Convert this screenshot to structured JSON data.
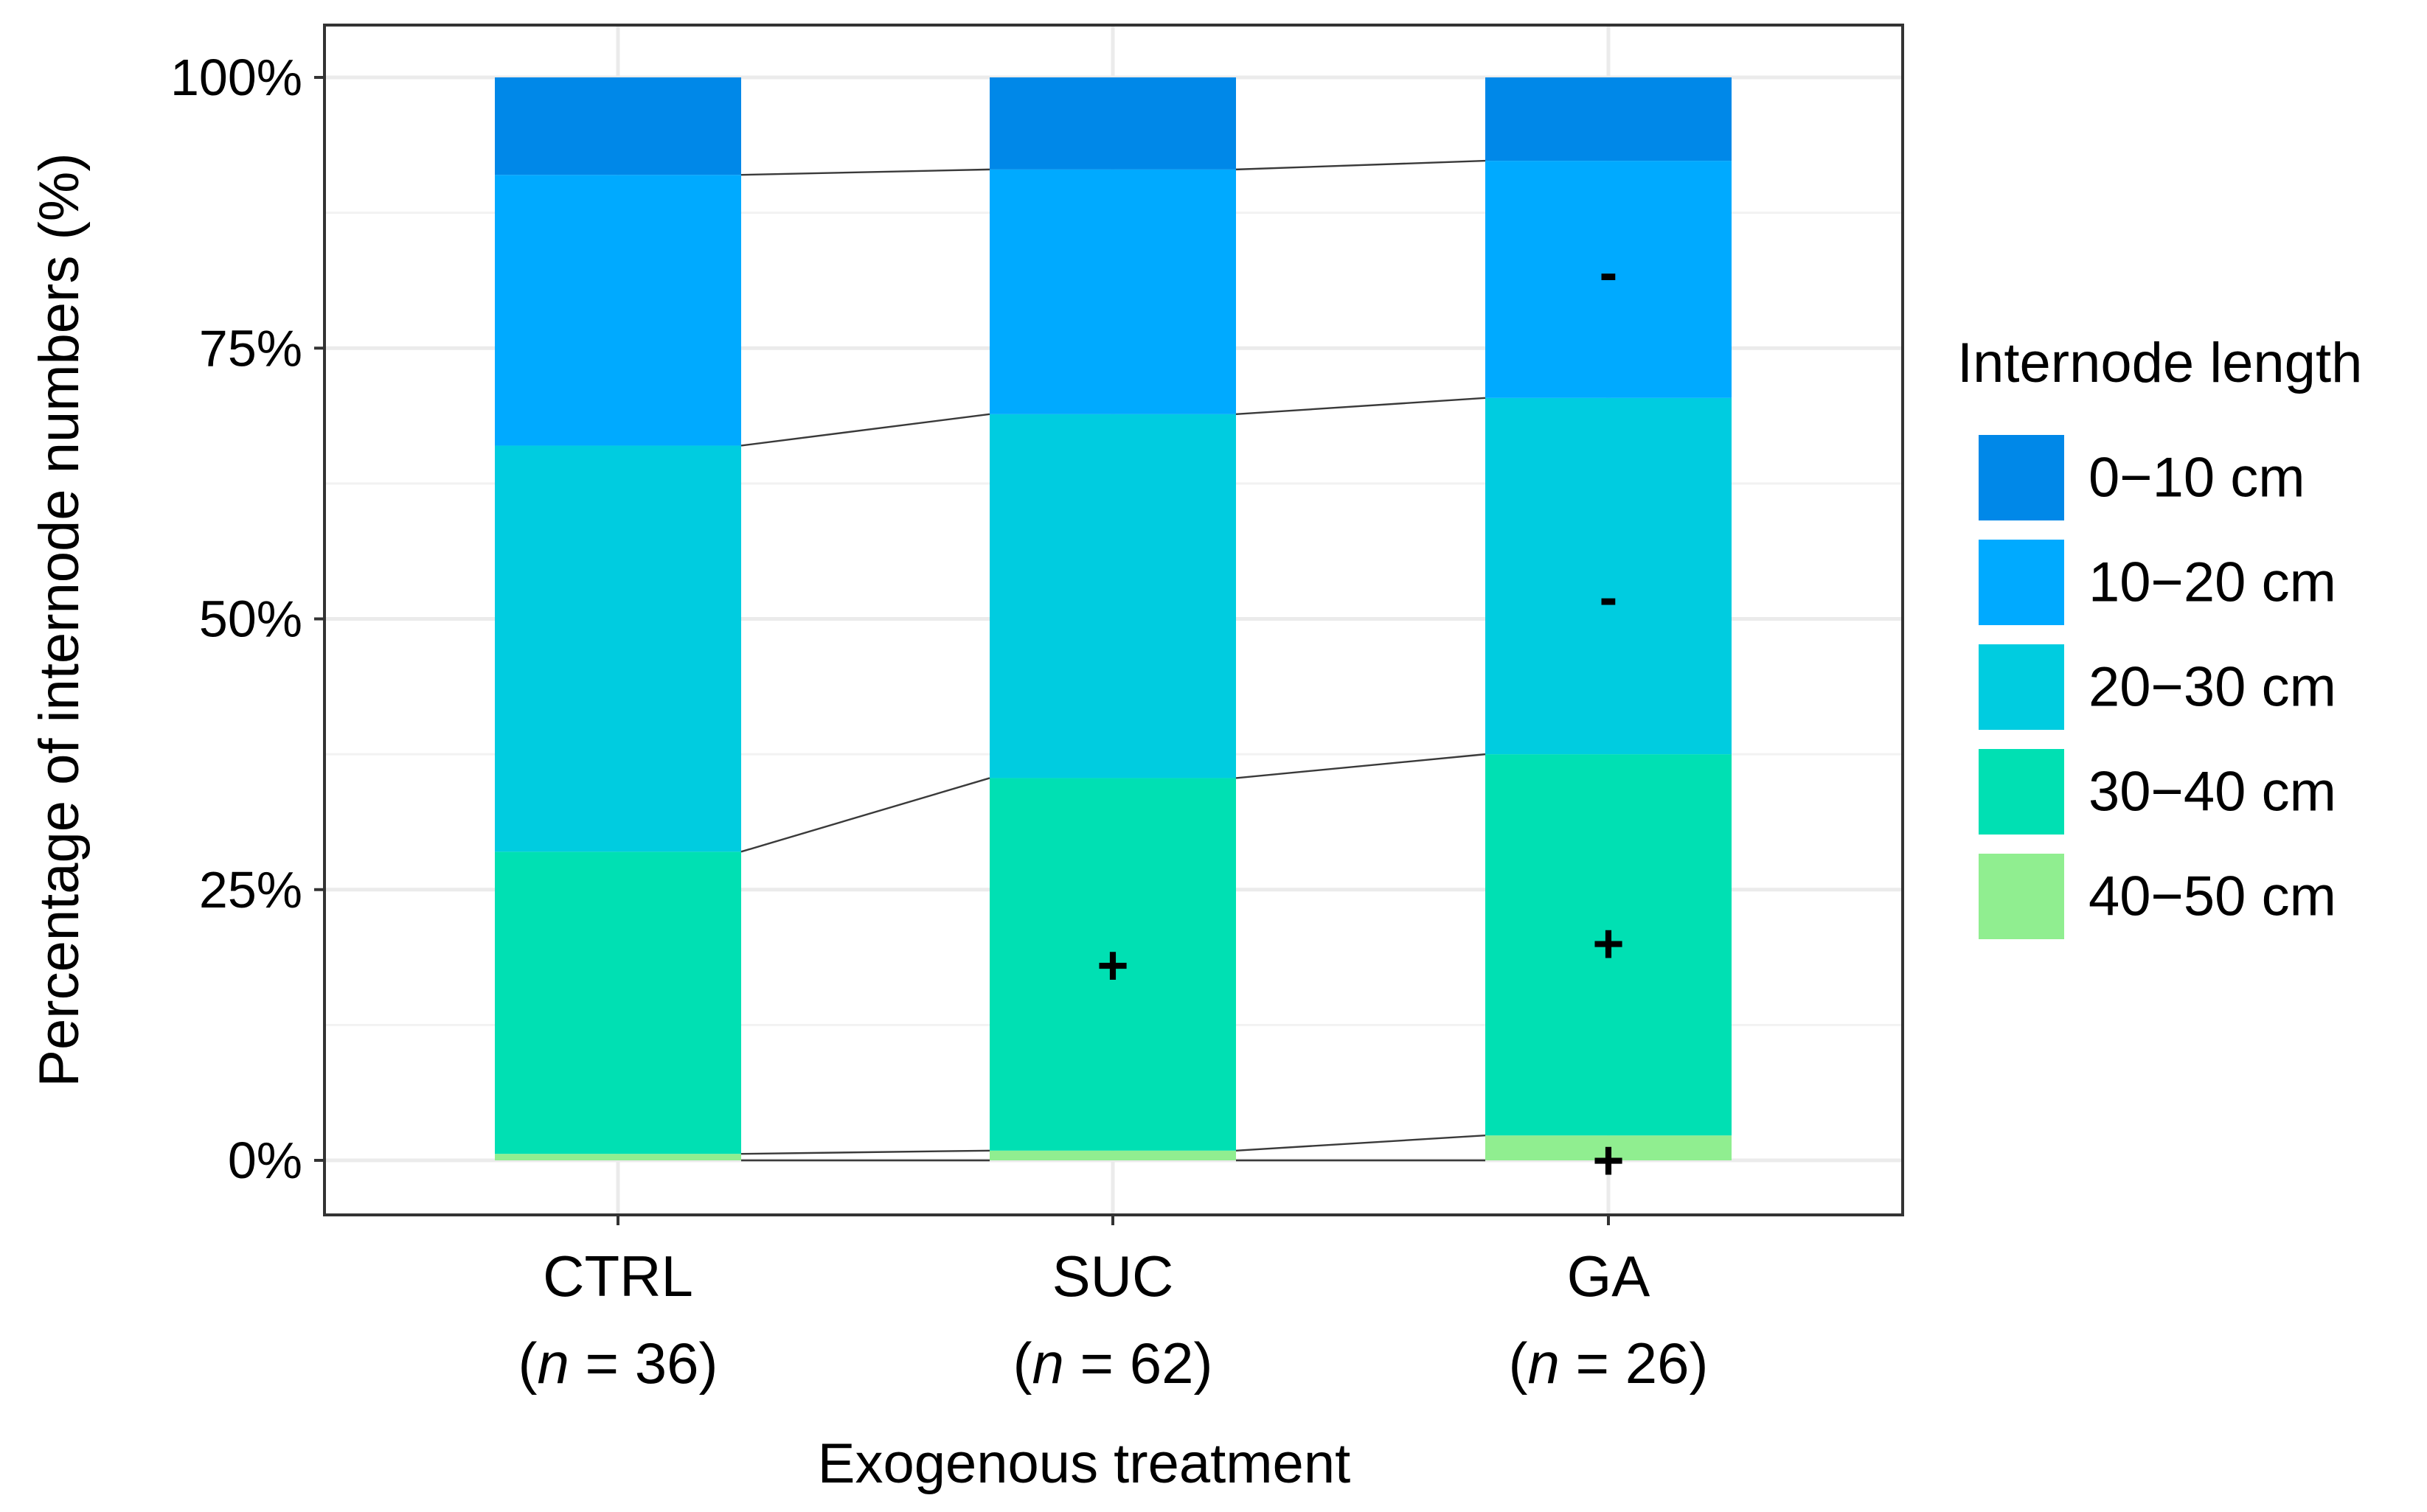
{
  "chart_data": {
    "type": "bar",
    "stacked": true,
    "categories": [
      "CTRL",
      "SUC",
      "GA"
    ],
    "category_n": [
      "36",
      "62",
      "26"
    ],
    "n_prefix": "(",
    "n_italic": "n",
    "n_equals": " = ",
    "n_suffix": ")",
    "xlabel": "Exogenous treatment",
    "ylabel": "Percentage of internode numbers (%)",
    "ylim": [
      0,
      100
    ],
    "y_ticks": [
      0,
      25,
      50,
      75,
      100
    ],
    "y_tick_labels": [
      "0%",
      "25%",
      "50%",
      "75%",
      "100%"
    ],
    "legend_title": "Internode length",
    "legend_position": "right",
    "series": [
      {
        "name": "40−50 cm",
        "color": "#90ee90",
        "values": [
          0.6,
          0.9,
          2.3
        ]
      },
      {
        "name": "30−40 cm",
        "color": "#00e0b3",
        "values": [
          27.9,
          34.4,
          35.2
        ]
      },
      {
        "name": "20−30 cm",
        "color": "#00cce0",
        "values": [
          37.5,
          33.6,
          32.9
        ]
      },
      {
        "name": "10−20 cm",
        "color": "#00aaff",
        "values": [
          25.0,
          22.6,
          21.9
        ]
      },
      {
        "name": "0−10 cm",
        "color": "#0088e8",
        "values": [
          9.0,
          8.5,
          7.7
        ]
      }
    ],
    "legend_order": [
      "0−10 cm",
      "10−20 cm",
      "20−30 cm",
      "30−40 cm",
      "40−50 cm"
    ],
    "annotations": [
      {
        "category": "SUC",
        "series": "30−40 cm",
        "text": "+",
        "y": 18
      },
      {
        "category": "GA",
        "series": "10−20 cm",
        "text": "-",
        "y": 82
      },
      {
        "category": "GA",
        "series": "20−30 cm",
        "text": "-",
        "y": 52
      },
      {
        "category": "GA",
        "series": "30−40 cm",
        "text": "+",
        "y": 20
      },
      {
        "category": "GA",
        "series": "40−50 cm",
        "text": "+",
        "y": 0
      }
    ]
  }
}
